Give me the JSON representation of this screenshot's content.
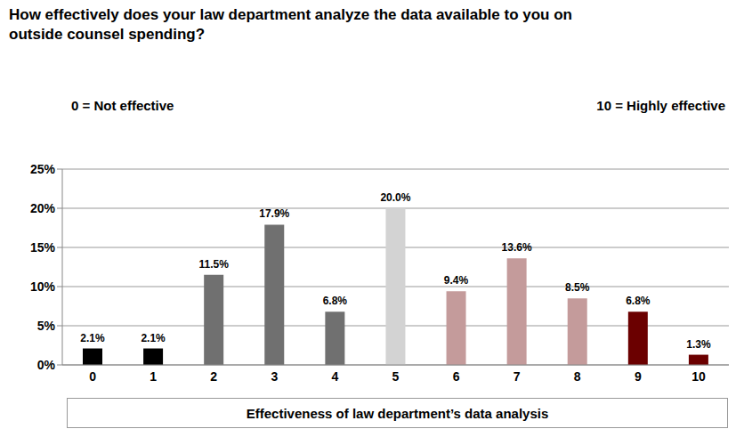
{
  "chart_data": {
    "type": "bar",
    "title": "How effectively does your law department analyze the data available to you on outside counsel spending?",
    "annotations": [
      "0 = Not effective",
      "10 = Highly effective"
    ],
    "x_label": "Effectiveness of law department’s data analysis",
    "categories": [
      "0",
      "1",
      "2",
      "3",
      "4",
      "5",
      "6",
      "7",
      "8",
      "9",
      "10"
    ],
    "values": [
      2.1,
      2.1,
      11.5,
      17.9,
      6.8,
      20.0,
      9.4,
      13.6,
      8.5,
      6.8,
      1.3
    ],
    "value_labels": [
      "2.1%",
      "2.1%",
      "11.5%",
      "17.9%",
      "6.8%",
      "20.0%",
      "9.4%",
      "13.6%",
      "8.5%",
      "6.8%",
      "1.3%"
    ],
    "colors": [
      "#000000",
      "#000000",
      "#707070",
      "#707070",
      "#707070",
      "#d3d3d3",
      "#c49b9b",
      "#c49b9b",
      "#c49b9b",
      "#6b0000",
      "#6b0000"
    ],
    "ylim": [
      0,
      25
    ],
    "yticks": [
      {
        "value": 0,
        "label": "0%"
      },
      {
        "value": 5,
        "label": "5%"
      },
      {
        "value": 10,
        "label": "10%"
      },
      {
        "value": 15,
        "label": "15%"
      },
      {
        "value": 20,
        "label": "20%"
      },
      {
        "value": 25,
        "label": "25%"
      }
    ],
    "grid": true,
    "data_labels": true
  }
}
